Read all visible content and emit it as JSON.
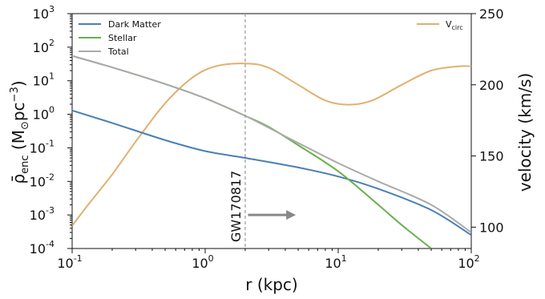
{
  "chart_data": {
    "type": "line",
    "xlabel": "r (kpc)",
    "ylabel_left": "ρ̄enc (M⊙pc⁻³)",
    "ylabel_right": "velocity (km/s)",
    "x_scale": "log",
    "xlim": [
      0.1,
      100
    ],
    "ylim_left": [
      0.0001,
      1000
    ],
    "ylim_right": [
      85,
      250
    ],
    "x_ticks": [
      "10^-1",
      "10^0",
      "10^1",
      "10^2"
    ],
    "y_ticks_left": [
      "10^-4",
      "10^-3",
      "10^-2",
      "10^-1",
      "10^0",
      "10^1",
      "10^2",
      "10^3"
    ],
    "y_ticks_right": [
      "100",
      "150",
      "200",
      "250"
    ],
    "series_left": [
      {
        "name": "Dark Matter",
        "color": "#4a7fb5",
        "x": [
          0.1,
          0.2,
          0.5,
          1,
          2,
          5,
          10,
          20,
          50,
          100
        ],
        "y": [
          1.3,
          0.55,
          0.17,
          0.08,
          0.05,
          0.026,
          0.014,
          0.006,
          0.0014,
          0.00025
        ]
      },
      {
        "name": "Stellar",
        "color": "#6ab04c",
        "x": [
          0.1,
          0.2,
          0.5,
          1,
          2,
          3,
          5,
          10,
          20,
          30,
          50
        ],
        "y": [
          55,
          25,
          8,
          3,
          0.9,
          0.42,
          0.12,
          0.02,
          0.002,
          0.0005,
          0.0001
        ]
      },
      {
        "name": "Total",
        "color": "#aaaaaa",
        "x": [
          0.1,
          0.2,
          0.5,
          1,
          2,
          5,
          10,
          20,
          50,
          100
        ],
        "y": [
          55,
          25,
          8,
          3,
          0.9,
          0.14,
          0.035,
          0.01,
          0.002,
          0.0003
        ]
      }
    ],
    "series_right": [
      {
        "name": "V_circ",
        "color": "#e0b070",
        "x": [
          0.1,
          0.13,
          0.2,
          0.3,
          0.5,
          0.8,
          1.2,
          2,
          3,
          5,
          8,
          12,
          18,
          30,
          50,
          80,
          100
        ],
        "y": [
          101,
          115,
          137,
          160,
          187,
          205,
          213,
          215,
          212,
          200,
          189,
          186,
          189,
          200,
          210,
          213,
          213
        ]
      }
    ],
    "annotations": [
      {
        "type": "vline",
        "x": 2,
        "label": "GW170817"
      },
      {
        "type": "arrow",
        "from_x": 2.1,
        "to_x": 4.8,
        "y_left": 0.001
      }
    ],
    "legend_left": {
      "position": "top-left",
      "entries": [
        "Dark Matter",
        "Stellar",
        "Total"
      ]
    },
    "legend_right": {
      "position": "top-right",
      "entries": [
        "V_circ"
      ]
    },
    "grid": false
  }
}
